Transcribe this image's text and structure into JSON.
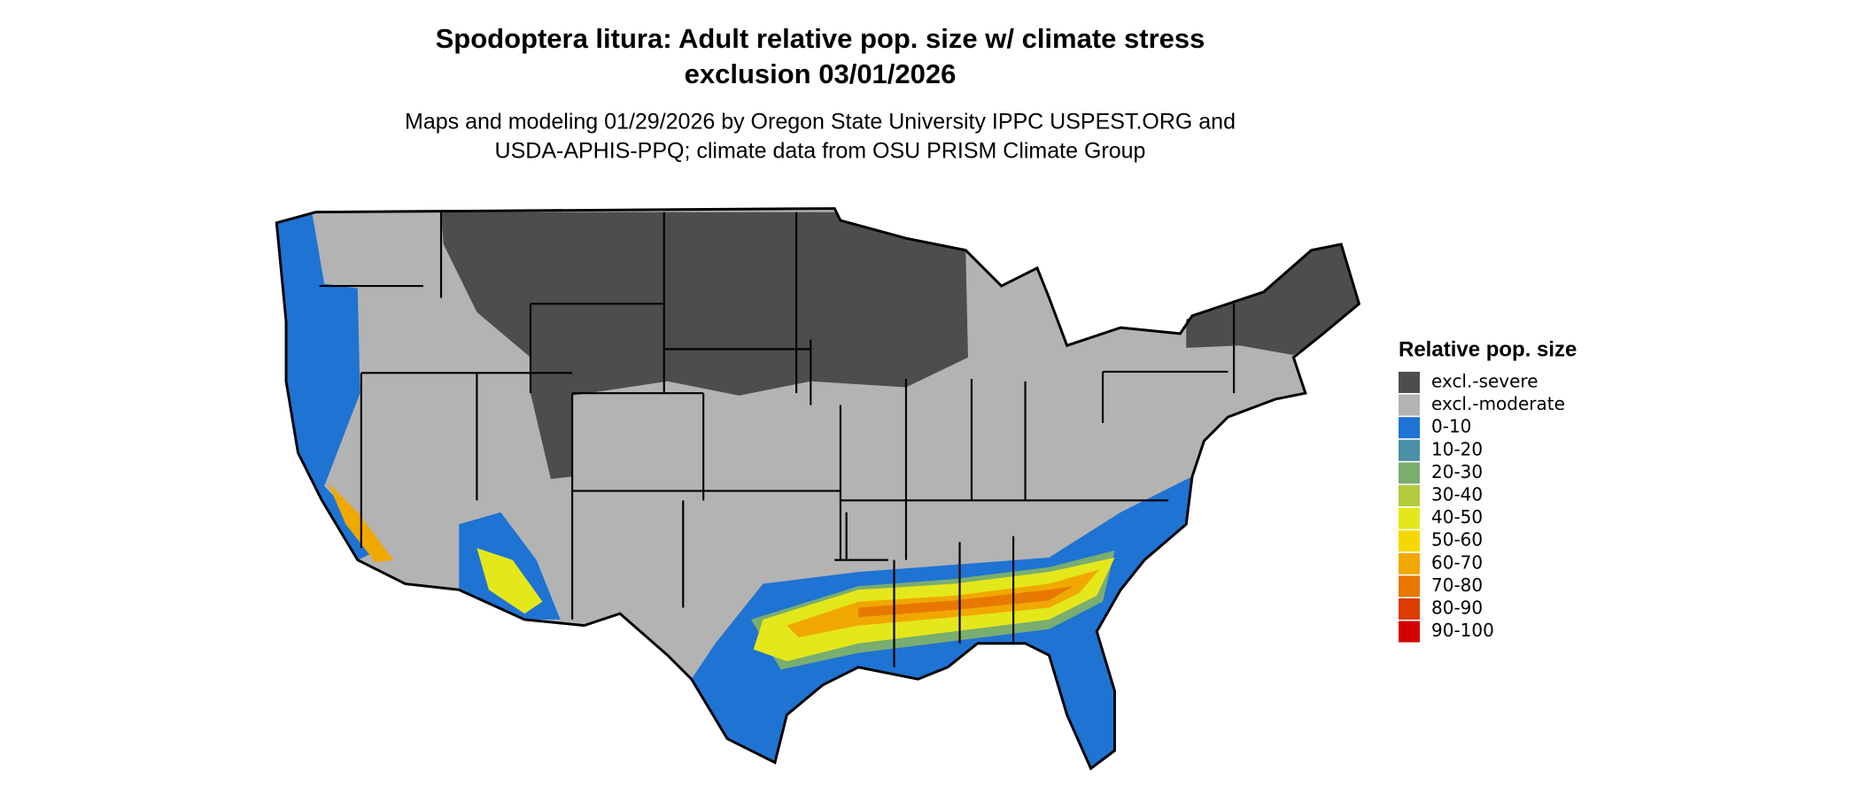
{
  "header": {
    "title_lines": [
      "Spodoptera litura: Adult relative pop. size w/ climate stress",
      "exclusion 03/01/2026"
    ],
    "subtitle_lines": [
      "Maps and modeling 01/29/2026 by Oregon State University IPPC USPEST.ORG and",
      "USDA-APHIS-PPQ; climate data from OSU PRISM Climate Group"
    ]
  },
  "legend": {
    "title": "Relative pop. size",
    "items": [
      {
        "label": "excl.-severe",
        "color": "#4d4d4d"
      },
      {
        "label": "excl.-moderate",
        "color": "#b3b3b3"
      },
      {
        "label": "0-10",
        "color": "#1f73d2"
      },
      {
        "label": "10-20",
        "color": "#4a8fa3"
      },
      {
        "label": "20-30",
        "color": "#7aad70"
      },
      {
        "label": "30-40",
        "color": "#b2cc3c"
      },
      {
        "label": "40-50",
        "color": "#e4e81a"
      },
      {
        "label": "50-60",
        "color": "#f5d800"
      },
      {
        "label": "60-70",
        "color": "#f0a800"
      },
      {
        "label": "70-80",
        "color": "#e87800"
      },
      {
        "label": "80-90",
        "color": "#dc3c00"
      },
      {
        "label": "90-100",
        "color": "#d40000"
      }
    ]
  }
}
